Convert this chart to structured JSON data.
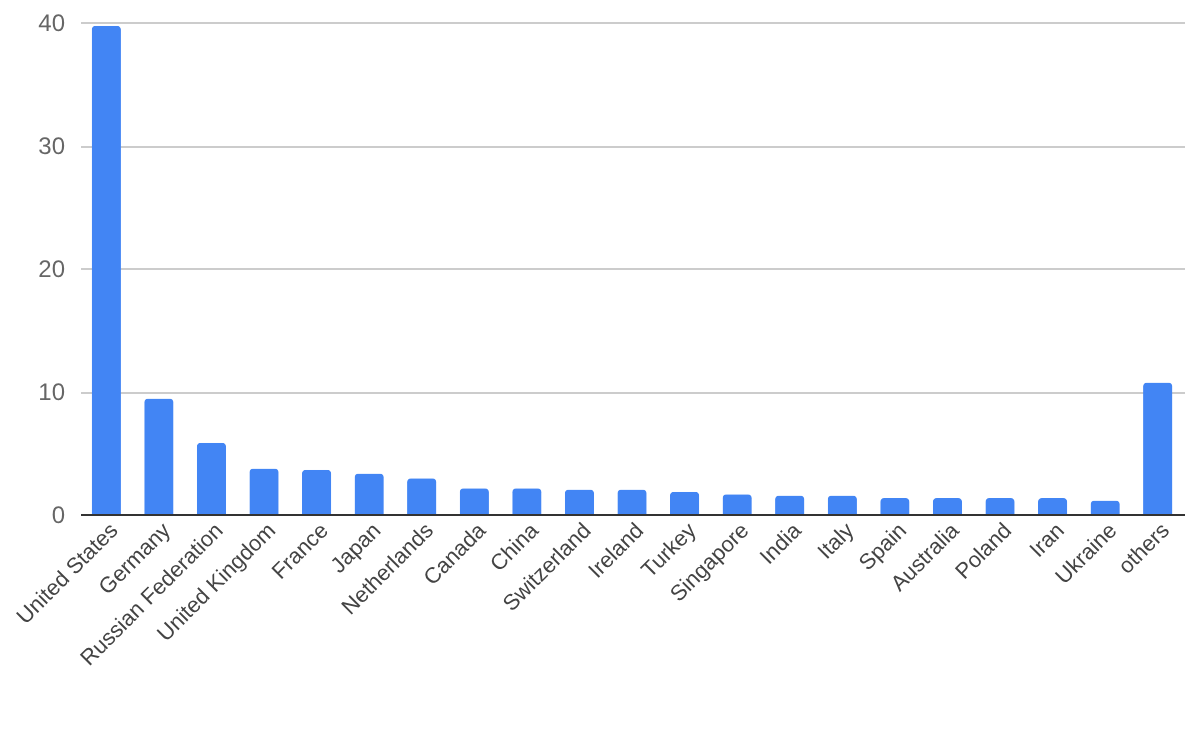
{
  "chart_data": {
    "type": "bar",
    "categories": [
      "United States",
      "Germany",
      "Russian Federation",
      "United Kingdom",
      "France",
      "Japan",
      "Netherlands",
      "Canada",
      "China",
      "Switzerland",
      "Ireland",
      "Turkey",
      "Singapore",
      "India",
      "Italy",
      "Spain",
      "Australia",
      "Poland",
      "Iran",
      "Ukraine",
      "others"
    ],
    "values": [
      39.7,
      9.4,
      5.8,
      3.7,
      3.6,
      3.3,
      2.9,
      2.1,
      2.1,
      2.0,
      2.0,
      1.8,
      1.6,
      1.5,
      1.5,
      1.3,
      1.3,
      1.3,
      1.3,
      1.1,
      10.7
    ],
    "color": "#4285f4",
    "ylim": [
      0,
      40
    ],
    "yticks": [
      0,
      10,
      20,
      30,
      40
    ],
    "grid": "y"
  }
}
